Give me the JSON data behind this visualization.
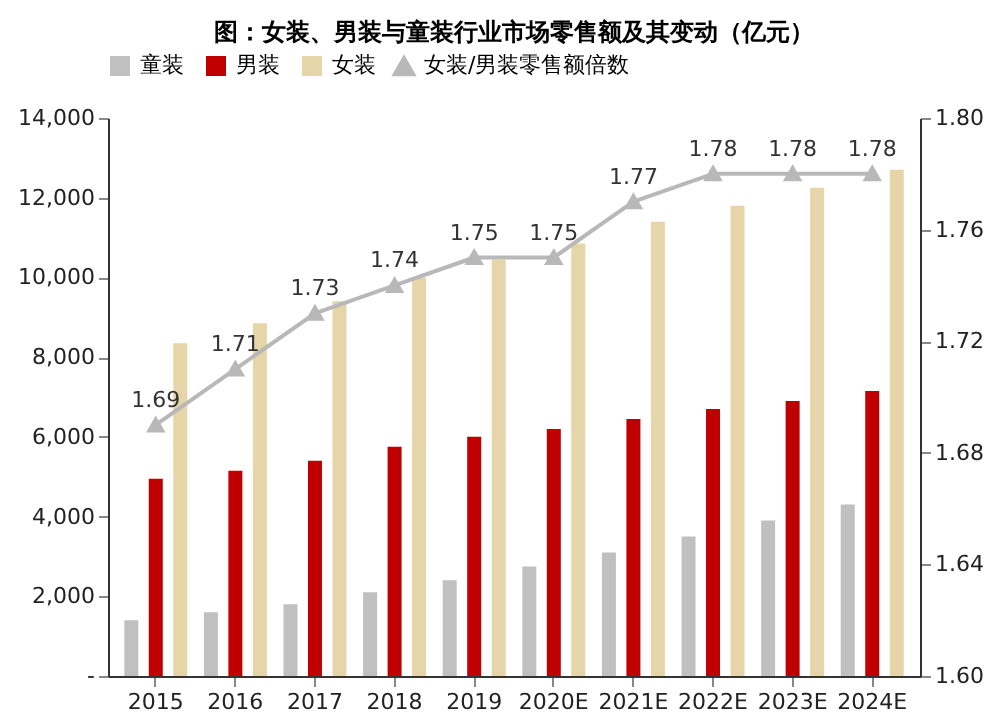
{
  "chart_data": {
    "type": "bar",
    "title": "图：女装、男装与童装行业市场零售额及其变动（亿元）",
    "categories": [
      "2015",
      "2016",
      "2017",
      "2018",
      "2019",
      "2020E",
      "2021E",
      "2022E",
      "2023E",
      "2024E"
    ],
    "series": [
      {
        "name": "童装",
        "color": "#c0c0c0",
        "values": [
          1400,
          1600,
          1800,
          2100,
          2400,
          2750,
          3100,
          3500,
          3900,
          4300
        ]
      },
      {
        "name": "男装",
        "color": "#c00000",
        "values": [
          4950,
          5150,
          5400,
          5750,
          6000,
          6200,
          6450,
          6700,
          6900,
          7150
        ]
      },
      {
        "name": "女装",
        "color": "#e6d5a8",
        "values": [
          8350,
          8850,
          9400,
          10000,
          10450,
          10850,
          11400,
          11800,
          12250,
          12700
        ]
      },
      {
        "name": "女装/男装零售额倍数",
        "type": "line",
        "axis": "y2",
        "color": "#b8b8b8",
        "marker": "triangle",
        "data_labels": true,
        "values": [
          1.69,
          1.71,
          1.73,
          1.74,
          1.75,
          1.75,
          1.77,
          1.78,
          1.78,
          1.78
        ]
      }
    ],
    "ylim": [
      0,
      14000
    ],
    "yticks": [
      {
        "value": 0,
        "label": "-"
      },
      {
        "value": 2000,
        "label": "2,000"
      },
      {
        "value": 4000,
        "label": "4,000"
      },
      {
        "value": 6000,
        "label": "6,000"
      },
      {
        "value": 8000,
        "label": "8,000"
      },
      {
        "value": 10000,
        "label": "10,000"
      },
      {
        "value": 12000,
        "label": "12,000"
      },
      {
        "value": 14000,
        "label": "14,000"
      }
    ],
    "y2lim": [
      1.6,
      1.8
    ],
    "y2ticks": [
      {
        "value": 1.6,
        "label": "1.60"
      },
      {
        "value": 1.64,
        "label": "1.64"
      },
      {
        "value": 1.68,
        "label": "1.68"
      },
      {
        "value": 1.72,
        "label": "1.72"
      },
      {
        "value": 1.76,
        "label": "1.76"
      },
      {
        "value": 1.8,
        "label": "1.80"
      }
    ],
    "legend": "top",
    "grid": false
  }
}
